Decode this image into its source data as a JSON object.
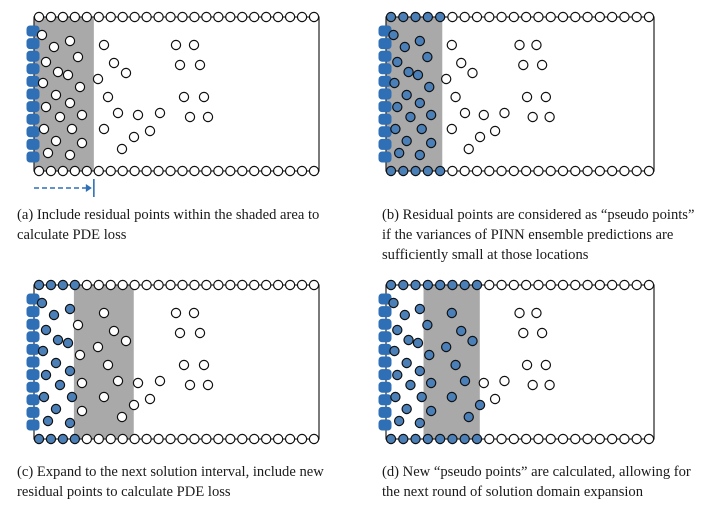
{
  "colors": {
    "shade": "#a9a9a9",
    "boundary_blue": "#2f6fb5",
    "pseudo_fill": "#4a7fb8",
    "open_fill": "#ffffff",
    "stroke": "#111111",
    "arrow": "#2f6fb5"
  },
  "panels": [
    {
      "id": "a",
      "caption_lines": [
        "(a) Include residual points within the shaded area to",
        "calculate PDE loss"
      ],
      "shaded_interval": [
        0,
        0.21
      ],
      "pseudo_interval": null,
      "arrow": true
    },
    {
      "id": "b",
      "caption_lines": [
        "(b) Residual points are considered as “pseudo points”",
        "if the variances of PINN ensemble predictions are",
        "sufficiently small at those locations"
      ],
      "shaded_interval": [
        0,
        0.21
      ],
      "pseudo_interval": [
        0,
        0.21
      ],
      "arrow": false
    },
    {
      "id": "c",
      "caption_lines": [
        "(c) Expand to the next solution interval, include new",
        "residual points to calculate PDE loss"
      ],
      "shaded_interval": [
        0.14,
        0.35
      ],
      "pseudo_interval": [
        0,
        0.14
      ],
      "arrow": false
    },
    {
      "id": "d",
      "caption_lines": [
        "(d) New “pseudo points” are calculated, allowing for",
        "the next round of solution domain expansion"
      ],
      "shaded_interval": [
        0.14,
        0.35
      ],
      "pseudo_interval": [
        0,
        0.35
      ],
      "arrow": false
    }
  ]
}
